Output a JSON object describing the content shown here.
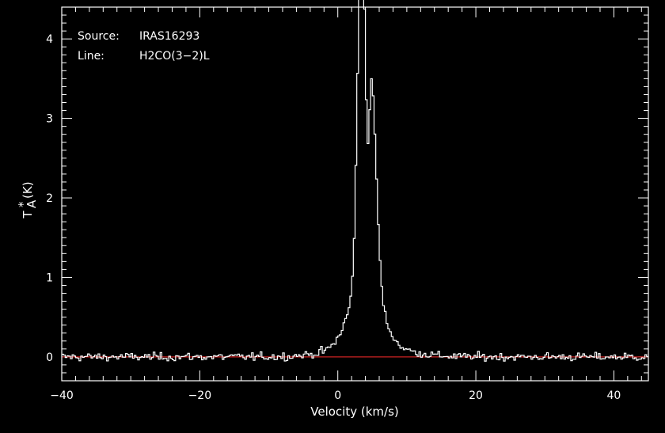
{
  "chart_data": {
    "type": "line",
    "title": "",
    "xlabel": "Velocity (km/s)",
    "ylabel_main": "T",
    "ylabel_sub": "A",
    "ylabel_sup": "*",
    "ylabel_unit": "(K)",
    "xlim": [
      -40,
      45
    ],
    "ylim": [
      -0.3,
      4.4
    ],
    "x_ticks": [
      -40,
      -20,
      0,
      20,
      40
    ],
    "x_tick_labels": [
      "−40",
      "−20",
      "0",
      "20",
      "40"
    ],
    "y_ticks": [
      0,
      1,
      2,
      3,
      4
    ],
    "y_tick_labels": [
      "0",
      "1",
      "2",
      "3",
      "4"
    ],
    "grid": false,
    "annotations": {
      "source_label": "Source:",
      "source_value": "IRAS16293",
      "line_label": "Line:",
      "line_value": "H2CO(3−2)L"
    },
    "baseline": {
      "y": 0,
      "color": "#cc2222"
    },
    "spectrum": {
      "color": "#ffffff",
      "channel_width": 0.25,
      "noise_rms": 0.025,
      "components": [
        {
          "center": 3.4,
          "amplitude": 4.1,
          "width": 0.55
        },
        {
          "center": 4.9,
          "amplitude": 2.45,
          "width": 0.7
        },
        {
          "center": 4.0,
          "amplitude": 0.9,
          "width": 2.1
        },
        {
          "center": 4.5,
          "amplitude": 0.14,
          "width": 5.0
        }
      ],
      "dip": {
        "center": 4.3,
        "depth": 1.1,
        "width": 0.25
      }
    }
  }
}
